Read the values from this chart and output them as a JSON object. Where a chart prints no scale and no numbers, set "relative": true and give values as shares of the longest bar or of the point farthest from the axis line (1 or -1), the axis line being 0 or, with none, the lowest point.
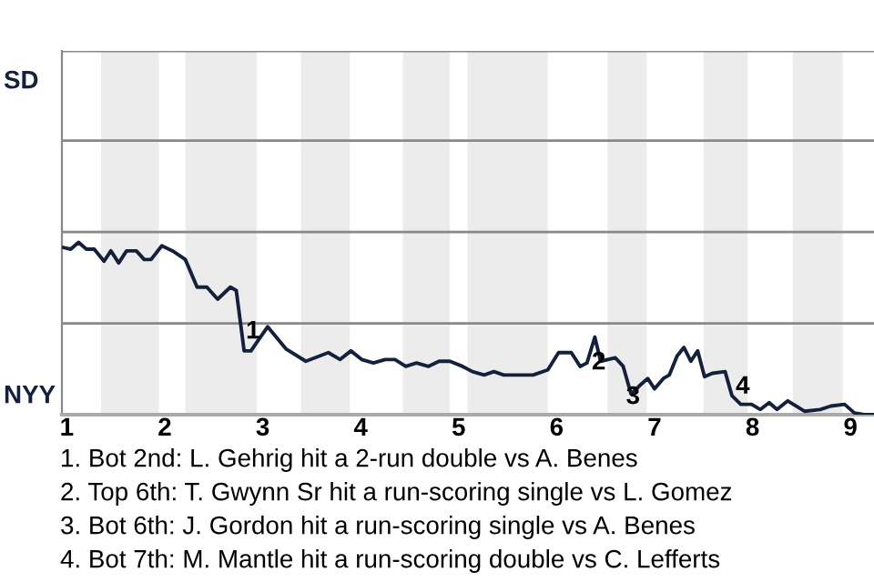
{
  "chart_data": {
    "type": "line",
    "relative": true,
    "x": [
      0.96,
      1.04,
      1.12,
      1.2,
      1.28,
      1.38,
      1.45,
      1.53,
      1.61,
      1.71,
      1.79,
      1.86,
      1.97,
      2.08,
      2.21,
      2.33,
      2.43,
      2.54,
      2.67,
      2.73,
      2.81,
      2.88,
      2.94,
      3.05,
      3.24,
      3.44,
      3.67,
      3.79,
      3.9,
      4.01,
      4.13,
      4.25,
      4.35,
      4.46,
      4.57,
      4.69,
      4.8,
      4.91,
      5.04,
      5.14,
      5.26,
      5.36,
      5.46,
      5.76,
      5.91,
      6.02,
      6.15,
      6.24,
      6.31,
      6.39,
      6.45,
      6.6,
      6.68,
      6.76,
      6.85,
      6.93,
      7.0,
      7.09,
      7.15,
      7.23,
      7.3,
      7.37,
      7.44,
      7.51,
      7.59,
      7.72,
      7.79,
      7.88,
      7.99,
      8.08,
      8.17,
      8.25,
      8.36,
      8.53,
      8.69,
      8.8,
      8.94,
      9.04,
      9.14,
      9.24
    ],
    "series": [
      {
        "color": "#14213d",
        "values": [
          0.97,
          0.96,
          1,
          0.96,
          0.96,
          0.89,
          0.95,
          0.88,
          0.95,
          0.95,
          0.9,
          0.9,
          0.98,
          0.95,
          0.9,
          0.74,
          0.74,
          0.67,
          0.74,
          0.72,
          0.37,
          0.37,
          0.42,
          0.51,
          0.38,
          0.31,
          0.36,
          0.32,
          0.37,
          0.32,
          0.3,
          0.32,
          0.32,
          0.28,
          0.3,
          0.28,
          0.31,
          0.31,
          0.28,
          0.25,
          0.23,
          0.25,
          0.23,
          0.23,
          0.26,
          0.36,
          0.36,
          0.28,
          0.3,
          0.45,
          0.31,
          0.33,
          0.28,
          0.12,
          0.17,
          0.21,
          0.15,
          0.21,
          0.23,
          0.34,
          0.39,
          0.31,
          0.37,
          0.22,
          0.24,
          0.25,
          0.11,
          0.06,
          0.06,
          0.03,
          0.07,
          0.03,
          0.08,
          0.02,
          0.03,
          0.05,
          0.06,
          0.01,
          0,
          0
        ]
      }
    ],
    "xlim": [
      0.95,
      9.24
    ],
    "xticks": [
      1,
      2,
      3,
      4,
      5,
      6,
      7,
      8,
      9
    ],
    "marker": "none",
    "line_style": "solid",
    "ref_lines": [
      {
        "axis": "y",
        "value": 0.53,
        "color": "#888888"
      },
      {
        "axis": "y",
        "value": 1.06,
        "color": "#888888"
      },
      {
        "axis": "y",
        "value": 1.59,
        "color": "#888888"
      },
      {
        "axis": "y",
        "value": 2.11,
        "color": "#888888"
      }
    ],
    "bands": [
      {
        "axis": "x",
        "from": 1.35,
        "to": 1.94,
        "color": "#ececec"
      },
      {
        "axis": "x",
        "from": 2.21,
        "to": 2.94,
        "color": "#ececec"
      },
      {
        "axis": "x",
        "from": 3.39,
        "to": 3.89,
        "color": "#ececec"
      },
      {
        "axis": "x",
        "from": 4.43,
        "to": 4.91,
        "color": "#ececec"
      },
      {
        "axis": "x",
        "from": 5.09,
        "to": 5.91,
        "color": "#ececec"
      },
      {
        "axis": "x",
        "from": 6.52,
        "to": 6.92,
        "color": "#ececec"
      },
      {
        "axis": "x",
        "from": 7.5,
        "to": 7.95,
        "color": "#ececec"
      },
      {
        "axis": "x",
        "from": 8.41,
        "to": 8.92,
        "color": "#ececec"
      }
    ],
    "annotations": [
      "SD",
      "NYY",
      {
        "text": "1",
        "x": 2.9,
        "y": 0.48
      },
      {
        "text": "2",
        "x": 6.43,
        "y": 0.3
      },
      {
        "text": "3",
        "x": 6.78,
        "y": 0.1
      },
      {
        "text": "4",
        "x": 7.9,
        "y": 0.16
      },
      "1. Bot 2nd: L. Gehrig hit a 2-run double vs A. Benes",
      "2. Top 6th: T. Gwynn Sr hit a run-scoring single vs L. Gomez",
      "3. Bot 6th: J. Gordon hit a run-scoring single vs A. Benes",
      "4. Bot 7th: M. Mantle hit a run-scoring double vs C. Lefferts"
    ]
  }
}
